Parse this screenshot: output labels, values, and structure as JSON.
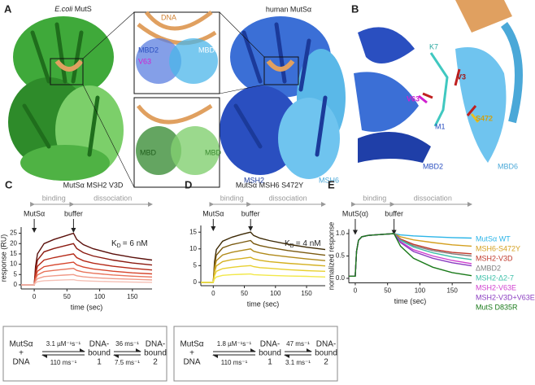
{
  "panel_a": {
    "letter": "A",
    "left_species": "E.coli",
    "left_protein": "MutS",
    "right_title": "human MutSα",
    "dna": "DNA",
    "mbd2": "MBD2",
    "v63": "V63",
    "mbd6": "MBD6",
    "mbd_left": "MBD",
    "mbd_right": "MBD",
    "msh2": "MSH2",
    "msh6": "MSH6"
  },
  "panel_b": {
    "letter": "B",
    "k7": "K7",
    "v3": "V3",
    "v63": "V63",
    "s472": "S472",
    "m1": "M1",
    "mbd2": "MBD2",
    "mbd6": "MBD6"
  },
  "chart_data": [
    {
      "letter": "C",
      "type": "line",
      "title": "MutSα MSH2 V3D",
      "xlabel": "time (sec)",
      "ylabel": "response (RU)",
      "binding": "binding",
      "dissociation": "dissociation",
      "inject_label": "MutSα",
      "buffer_label": "buffer",
      "inject_time": 0,
      "buffer_time": 60,
      "kd_symbol": "K",
      "kd_subscript": "D",
      "kd_text": "= 6 nM",
      "xlim": [
        -20,
        180
      ],
      "xticks": [
        0,
        50,
        100,
        150
      ],
      "ylim": [
        -2,
        28
      ],
      "yticks": [
        0,
        5,
        10,
        15,
        20,
        25
      ],
      "x": [
        -20,
        0,
        2,
        5,
        15,
        30,
        45,
        60,
        65,
        75,
        90,
        120,
        150,
        180
      ],
      "series": [
        {
          "color": "#5a0f0a",
          "values": [
            0,
            0,
            8.8,
            15,
            20,
            22,
            23.5,
            25,
            22,
            19.5,
            17.5,
            15,
            13.3,
            12
          ]
        },
        {
          "color": "#8b1a10",
          "values": [
            0,
            0,
            7,
            12,
            16,
            17.6,
            18.8,
            20,
            17.6,
            15.6,
            14,
            12,
            10.6,
            9.6
          ]
        },
        {
          "color": "#b52a18",
          "values": [
            0,
            0,
            5.3,
            9,
            12,
            13.2,
            14.1,
            15,
            13.2,
            11.7,
            10.5,
            9,
            8,
            7.2
          ]
        },
        {
          "color": "#d6452c",
          "values": [
            0,
            0,
            3.9,
            6.6,
            8.8,
            9.7,
            10.3,
            11,
            9.7,
            8.6,
            7.7,
            6.6,
            5.8,
            5.3
          ]
        },
        {
          "color": "#e8735a",
          "values": [
            0,
            0,
            2.8,
            4.8,
            6.4,
            7,
            7.5,
            8,
            7,
            6.2,
            5.6,
            4.8,
            4.2,
            3.8
          ]
        },
        {
          "color": "#f09a88",
          "values": [
            0,
            0,
            1.8,
            3,
            4,
            4.4,
            4.7,
            5,
            4.4,
            3.9,
            3.5,
            3,
            2.7,
            2.4
          ]
        },
        {
          "color": "#f5c0b5",
          "values": [
            0,
            0,
            0.9,
            1.5,
            2,
            2.2,
            2.4,
            2.5,
            2.2,
            2,
            1.8,
            1.5,
            1.3,
            1.2
          ]
        }
      ]
    },
    {
      "letter": "D",
      "type": "line",
      "title": "MutSα MSH6 S472Y",
      "xlabel": "time (sec)",
      "binding": "binding",
      "dissociation": "dissociation",
      "inject_label": "MutSα",
      "buffer_label": "buffer",
      "inject_time": 0,
      "buffer_time": 60,
      "kd_symbol": "K",
      "kd_subscript": "D",
      "kd_text": "= 4 nM",
      "xlim": [
        -20,
        180
      ],
      "xticks": [
        0,
        50,
        100,
        150
      ],
      "ylim": [
        -1,
        17
      ],
      "yticks": [
        0,
        5,
        10,
        15
      ],
      "x": [
        -20,
        0,
        2,
        5,
        15,
        30,
        45,
        60,
        65,
        75,
        90,
        120,
        150,
        180
      ],
      "series": [
        {
          "color": "#3d2a05",
          "values": [
            0,
            0,
            6,
            9.8,
            12.3,
            13.5,
            14.3,
            15,
            14,
            13.2,
            12.5,
            11.4,
            10.5,
            9.8
          ]
        },
        {
          "color": "#7a5a10",
          "values": [
            0,
            0,
            5,
            8.1,
            10.3,
            11.3,
            11.9,
            12.5,
            11.6,
            11,
            10.4,
            9.5,
            8.8,
            8.1
          ]
        },
        {
          "color": "#b08a1a",
          "values": [
            0,
            0,
            4,
            6.5,
            8.2,
            9,
            9.5,
            10,
            9.3,
            8.8,
            8.3,
            7.6,
            7,
            6.5
          ]
        },
        {
          "color": "#d4b020",
          "values": [
            0,
            0,
            3,
            4.9,
            6.2,
            6.8,
            7.1,
            7.5,
            7,
            6.6,
            6.2,
            5.7,
            5.3,
            4.9
          ]
        },
        {
          "color": "#e8d030",
          "values": [
            0,
            0,
            2,
            3.3,
            4.1,
            4.5,
            4.8,
            5,
            4.7,
            4.4,
            4.2,
            3.8,
            3.5,
            3.3
          ]
        },
        {
          "color": "#f2e84a",
          "values": [
            0,
            0,
            1,
            1.6,
            2.1,
            2.3,
            2.4,
            2.5,
            2.3,
            2.2,
            2.1,
            1.9,
            1.8,
            1.6
          ]
        }
      ]
    },
    {
      "letter": "E",
      "type": "line",
      "xlabel": "time (sec)",
      "ylabel": "normalized response",
      "binding": "binding",
      "dissociation": "dissociation",
      "inject_label": "MutS(α)",
      "buffer_label": "buffer",
      "inject_time": 0,
      "buffer_time": 60,
      "xlim": [
        -10,
        180
      ],
      "xticks": [
        0,
        50,
        100,
        150
      ],
      "ylim": [
        -0.1,
        1.1
      ],
      "yticks": [
        {
          "value": 0,
          "label": "0.0"
        },
        {
          "value": 0.5,
          "label": "0.5"
        },
        {
          "value": 1,
          "label": "1.0"
        }
      ],
      "x": [
        -10,
        0,
        2,
        5,
        10,
        20,
        40,
        60,
        70,
        90,
        120,
        150,
        180
      ],
      "series": [
        {
          "name": "MutSα WT",
          "color": "#2cb5e8",
          "values": [
            0.05,
            0.05,
            0.6,
            0.85,
            0.93,
            0.96,
            0.98,
            1,
            0.97,
            0.95,
            0.93,
            0.91,
            0.9
          ]
        },
        {
          "name": "MSH6-S472Y",
          "color": "#d4a020",
          "values": [
            0.05,
            0.05,
            0.6,
            0.85,
            0.93,
            0.96,
            0.98,
            1,
            0.93,
            0.86,
            0.8,
            0.75,
            0.72
          ]
        },
        {
          "name": "MSH2-V3D",
          "color": "#c0392b",
          "values": [
            0.05,
            0.05,
            0.6,
            0.85,
            0.93,
            0.96,
            0.98,
            1,
            0.88,
            0.76,
            0.65,
            0.58,
            0.55
          ]
        },
        {
          "name": "ΔMBD2",
          "color": "#808080",
          "values": [
            0.05,
            0.05,
            0.6,
            0.85,
            0.93,
            0.96,
            0.98,
            1,
            0.86,
            0.73,
            0.62,
            0.55,
            0.5
          ]
        },
        {
          "name": "MSH2-Δ2-7",
          "color": "#3cc0a8",
          "values": [
            0.05,
            0.05,
            0.6,
            0.85,
            0.93,
            0.96,
            0.98,
            1,
            0.85,
            0.7,
            0.57,
            0.48,
            0.42
          ]
        },
        {
          "name": "MSH2-V63E",
          "color": "#d040d0",
          "values": [
            0.05,
            0.05,
            0.6,
            0.85,
            0.93,
            0.96,
            0.98,
            1,
            0.82,
            0.64,
            0.5,
            0.4,
            0.33
          ]
        },
        {
          "name": "MSH2-V3D+V63E",
          "color": "#8a3cc0",
          "values": [
            0.05,
            0.05,
            0.6,
            0.85,
            0.93,
            0.96,
            0.98,
            1,
            0.8,
            0.6,
            0.45,
            0.35,
            0.28
          ]
        },
        {
          "name": "MutS D835R",
          "color": "#1a7a1a",
          "values": [
            0.05,
            0.05,
            0.6,
            0.85,
            0.93,
            0.96,
            0.98,
            1,
            0.72,
            0.45,
            0.25,
            0.13,
            0.06
          ]
        }
      ]
    }
  ],
  "schemes": [
    {
      "species": [
        [
          "MutSα",
          "+",
          "DNA"
        ],
        [
          "DNA-",
          "bound",
          "1"
        ],
        [
          "DNA-",
          "bound",
          "2"
        ]
      ],
      "rates": [
        {
          "forward": "3.1 µM⁻¹s⁻¹",
          "reverse": "110 ms⁻¹"
        },
        {
          "forward": "36 ms⁻¹",
          "reverse": "7.5 ms⁻¹"
        }
      ]
    },
    {
      "species": [
        [
          "MutSα",
          "+",
          "DNA"
        ],
        [
          "DNA-",
          "bound",
          "1"
        ],
        [
          "DNA-",
          "bound",
          "2"
        ]
      ],
      "rates": [
        {
          "forward": "1.8 µM⁻¹s⁻¹",
          "reverse": "110 ms⁻¹"
        },
        {
          "forward": "47 ms⁻¹",
          "reverse": "3.1 ms⁻¹"
        }
      ]
    }
  ]
}
